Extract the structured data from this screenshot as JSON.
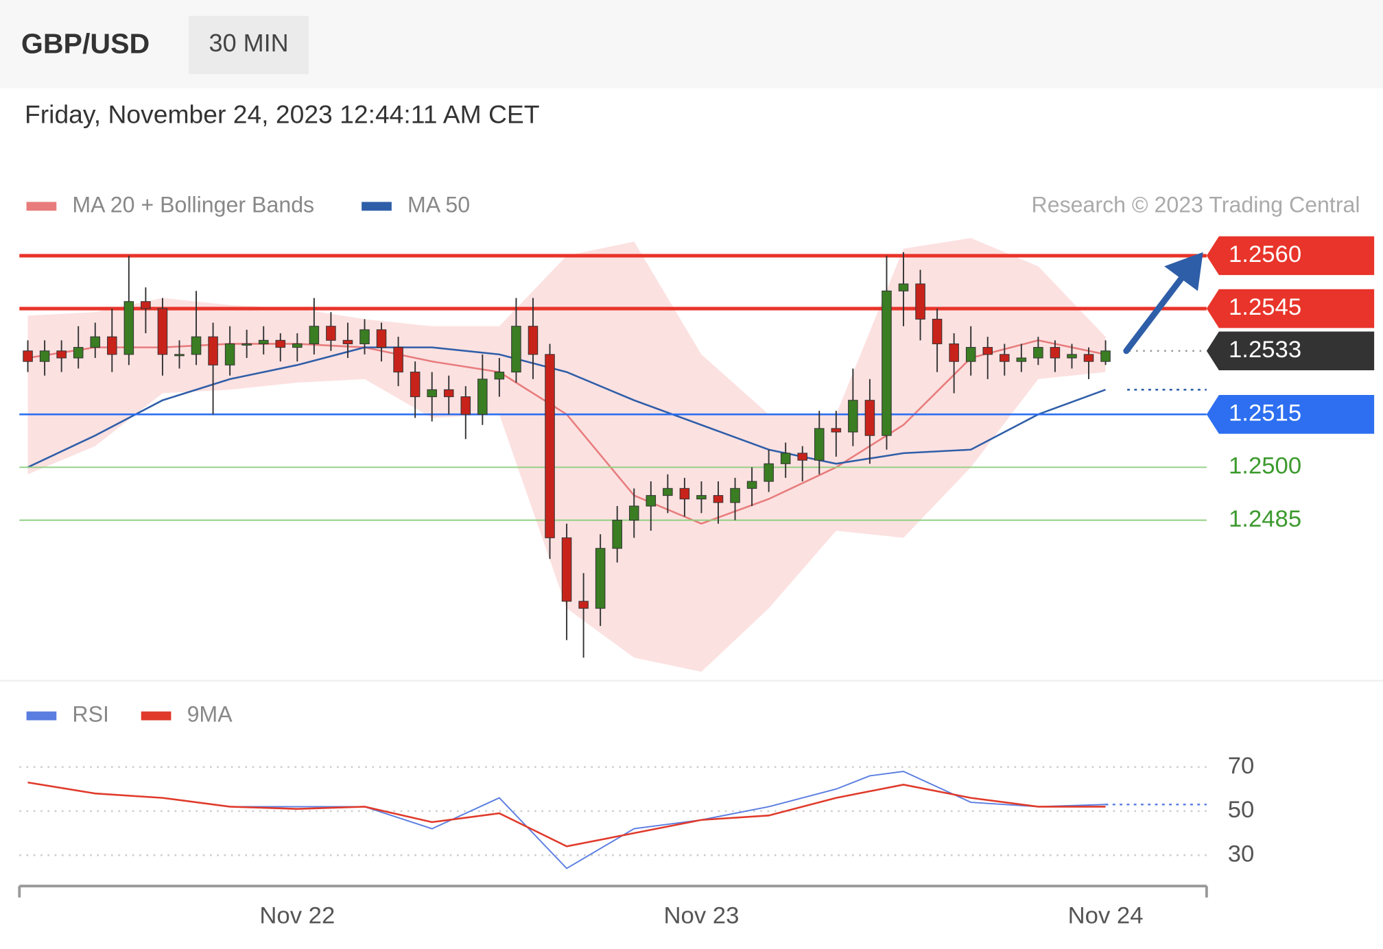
{
  "header": {
    "symbol": "GBP/USD",
    "interval": "30 MIN",
    "timestamp": "Friday, November 24, 2023 12:44:11 AM CET"
  },
  "chart_data": [
    {
      "type": "candlestick",
      "annotation": "Research © 2023 Trading Central",
      "up_color": "#3a7d22",
      "down_color": "#c8231b",
      "xlim": [
        -0.5,
        70
      ],
      "ylim": [
        1.244,
        1.2565
      ],
      "xticks": [
        {
          "value": 16,
          "label": "Nov 22"
        },
        {
          "value": 40,
          "label": "Nov 23"
        },
        {
          "value": 64,
          "label": "Nov 24"
        }
      ],
      "open": [
        1.2533,
        1.253,
        1.2533,
        1.2531,
        1.2534,
        1.2537,
        1.2532,
        1.2547,
        1.2545,
        1.2532,
        1.2532,
        1.2537,
        1.2529,
        1.2535,
        1.2535,
        1.2536,
        1.2534,
        1.2535,
        1.254,
        1.2536,
        1.2535,
        1.2539,
        1.2534,
        1.2527,
        1.252,
        1.2522,
        1.252,
        1.2515,
        1.2525,
        1.2527,
        1.254,
        1.2532,
        1.248,
        1.2462,
        1.246,
        1.2477,
        1.2485,
        1.2489,
        1.2492,
        1.2494,
        1.2491,
        1.2492,
        1.249,
        1.2494,
        1.2496,
        1.2501,
        1.2504,
        1.2502,
        1.2511,
        1.251,
        1.2519,
        1.2509,
        1.255,
        1.2552,
        1.2542,
        1.2535,
        1.253,
        1.2534,
        1.2532,
        1.253,
        1.2531,
        1.2534,
        1.2531,
        1.2532,
        1.253
      ],
      "high": [
        1.2536,
        1.2536,
        1.2536,
        1.254,
        1.2541,
        1.2545,
        1.256,
        1.2551,
        1.2548,
        1.2536,
        1.255,
        1.2541,
        1.254,
        1.2539,
        1.254,
        1.2538,
        1.2538,
        1.2548,
        1.2544,
        1.2541,
        1.2542,
        1.2541,
        1.2537,
        1.253,
        1.2527,
        1.2526,
        1.2523,
        1.2532,
        1.2531,
        1.2548,
        1.2548,
        1.2535,
        1.2484,
        1.247,
        1.2481,
        1.2489,
        1.2494,
        1.2496,
        1.2498,
        1.2497,
        1.2496,
        1.2496,
        1.2497,
        1.25,
        1.2505,
        1.2507,
        1.2506,
        1.2516,
        1.2516,
        1.2528,
        1.2525,
        1.256,
        1.2561,
        1.2556,
        1.2545,
        1.2538,
        1.254,
        1.2537,
        1.2535,
        1.2535,
        1.2537,
        1.2536,
        1.2535,
        1.2534,
        1.2536
      ],
      "low": [
        1.2527,
        1.2526,
        1.2527,
        1.2528,
        1.2531,
        1.2527,
        1.2529,
        1.2538,
        1.2526,
        1.2528,
        1.2529,
        1.2515,
        1.2526,
        1.2531,
        1.2532,
        1.253,
        1.253,
        1.2532,
        1.2533,
        1.2531,
        1.2532,
        1.253,
        1.2523,
        1.2514,
        1.2513,
        1.2515,
        1.2508,
        1.2512,
        1.252,
        1.2524,
        1.2525,
        1.2474,
        1.2451,
        1.2446,
        1.2455,
        1.2473,
        1.248,
        1.2482,
        1.2487,
        1.2486,
        1.2487,
        1.2484,
        1.2485,
        1.2489,
        1.2493,
        1.2497,
        1.2496,
        1.2498,
        1.2503,
        1.2506,
        1.2501,
        1.2505,
        1.254,
        1.2536,
        1.2527,
        1.2521,
        1.2526,
        1.2525,
        1.2526,
        1.2527,
        1.2529,
        1.2527,
        1.2528,
        1.2525,
        1.2529
      ],
      "close": [
        1.253,
        1.2533,
        1.2531,
        1.2534,
        1.2537,
        1.2532,
        1.2547,
        1.2545,
        1.2532,
        1.2532,
        1.2537,
        1.2529,
        1.2535,
        1.2535,
        1.2536,
        1.2534,
        1.2535,
        1.254,
        1.2536,
        1.2535,
        1.2539,
        1.2534,
        1.2527,
        1.252,
        1.2522,
        1.252,
        1.2515,
        1.2525,
        1.2527,
        1.254,
        1.2532,
        1.248,
        1.2462,
        1.246,
        1.2477,
        1.2485,
        1.2489,
        1.2492,
        1.2494,
        1.2491,
        1.2492,
        1.249,
        1.2494,
        1.2496,
        1.2501,
        1.2504,
        1.2502,
        1.2511,
        1.251,
        1.2519,
        1.2509,
        1.255,
        1.2552,
        1.2542,
        1.2535,
        1.253,
        1.2534,
        1.2532,
        1.253,
        1.2531,
        1.2534,
        1.2531,
        1.2532,
        1.253,
        1.2533
      ],
      "series": [
        {
          "name": "MA 20 + Bollinger Bands",
          "color": "#e87c7c",
          "band_color": "#fbdcdc",
          "x": [
            0,
            4,
            8,
            12,
            16,
            20,
            24,
            28,
            32,
            36,
            40,
            44,
            48,
            52,
            56,
            60,
            64
          ],
          "values": [
            1.2531,
            1.2534,
            1.2534,
            1.2535,
            1.2535,
            1.2534,
            1.253,
            1.2527,
            1.2515,
            1.2492,
            1.2484,
            1.2491,
            1.25,
            1.2512,
            1.2531,
            1.2536,
            1.2532
          ],
          "upper": [
            1.2543,
            1.2544,
            1.2548,
            1.2546,
            1.2545,
            1.2542,
            1.254,
            1.254,
            1.256,
            1.2564,
            1.2532,
            1.2515,
            1.2515,
            1.2562,
            1.2565,
            1.2557,
            1.2537
          ],
          "lower": [
            1.2498,
            1.2506,
            1.2521,
            1.2522,
            1.2524,
            1.2525,
            1.2514,
            1.2515,
            1.246,
            1.2446,
            1.2442,
            1.246,
            1.2482,
            1.248,
            1.25,
            1.2525,
            1.2527
          ]
        },
        {
          "name": "MA 50",
          "color": "#2f5ea8",
          "x": [
            0,
            4,
            8,
            12,
            16,
            20,
            24,
            28,
            32,
            36,
            40,
            44,
            48,
            52,
            56,
            60,
            64
          ],
          "values": [
            1.25,
            1.2509,
            1.2519,
            1.2525,
            1.2529,
            1.2534,
            1.2534,
            1.2532,
            1.2527,
            1.2519,
            1.2512,
            1.2505,
            1.2501,
            1.2504,
            1.2505,
            1.2515,
            1.2522
          ]
        }
      ],
      "levels": [
        {
          "value": 1.256,
          "label": "1.2560",
          "color": "#e8342a",
          "style": "resistance"
        },
        {
          "value": 1.2545,
          "label": "1.2545",
          "color": "#e8342a",
          "style": "resistance"
        },
        {
          "value": 1.2533,
          "label": "1.2533",
          "color": "#333333",
          "style": "last"
        },
        {
          "value": 1.2515,
          "label": "1.2515",
          "color": "#2d6ff0",
          "style": "pivot"
        },
        {
          "value": 1.25,
          "label": "1.2500",
          "color": "#3c9a2e",
          "style": "support"
        },
        {
          "value": 1.2485,
          "label": "1.2485",
          "color": "#3c9a2e",
          "style": "support"
        }
      ]
    },
    {
      "type": "line",
      "xlim": [
        -0.5,
        70
      ],
      "ylim": [
        18,
        80
      ],
      "yticks": [
        70,
        50,
        30
      ],
      "grid": true,
      "series": [
        {
          "name": "RSI",
          "color": "#5a7de0",
          "x": [
            0,
            4,
            8,
            12,
            16,
            20,
            24,
            28,
            32,
            36,
            40,
            44,
            48,
            50,
            52,
            56,
            60,
            64
          ],
          "values": [
            63,
            58,
            56,
            52,
            52,
            52,
            42,
            56,
            24,
            42,
            46,
            52,
            60,
            66,
            68,
            54,
            52,
            53
          ]
        },
        {
          "name": "9MA",
          "color": "#e03a2a",
          "x": [
            0,
            4,
            8,
            12,
            16,
            20,
            24,
            28,
            32,
            36,
            40,
            44,
            48,
            52,
            56,
            60,
            64
          ],
          "values": [
            63,
            58,
            56,
            52,
            51,
            52,
            45,
            49,
            34,
            40,
            46,
            48,
            56,
            62,
            56,
            52,
            52
          ]
        }
      ]
    }
  ]
}
